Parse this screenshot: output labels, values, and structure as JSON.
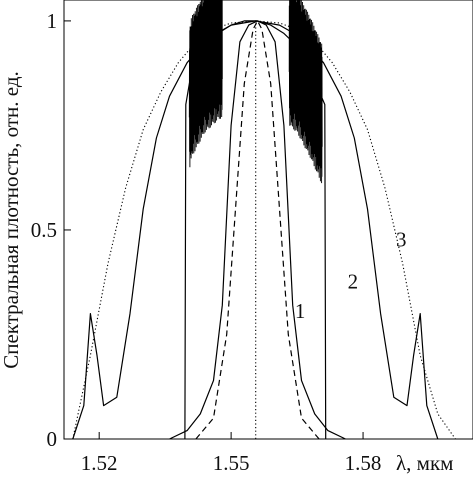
{
  "chart_data": {
    "type": "line",
    "title": "",
    "xlabel": "λ, мкм",
    "ylabel": "Спектральная плотность, отн. ед.",
    "xlim": [
      1.512,
      1.605
    ],
    "ylim": [
      0,
      1.05
    ],
    "x_ticks": [
      {
        "value": 1.52,
        "label": "1.52"
      },
      {
        "value": 1.55,
        "label": "1.55"
      },
      {
        "value": 1.58,
        "label": "1.58"
      }
    ],
    "y_ticks": [
      {
        "value": 0,
        "label": "0"
      },
      {
        "value": 0.5,
        "label": "0.5"
      },
      {
        "value": 1,
        "label": "1"
      }
    ],
    "grid": false,
    "legend": "none",
    "series": [
      {
        "name": "1",
        "style": "solid",
        "x": [
          1.536,
          1.54,
          1.543,
          1.546,
          1.548,
          1.55,
          1.552,
          1.554,
          1.556,
          1.558,
          1.56,
          1.562,
          1.564,
          1.566,
          1.569,
          1.572,
          1.576
        ],
        "y": [
          0.0,
          0.02,
          0.06,
          0.14,
          0.32,
          0.75,
          0.95,
          0.99,
          1.0,
          0.99,
          0.95,
          0.75,
          0.32,
          0.14,
          0.06,
          0.02,
          0.0
        ]
      },
      {
        "name": "",
        "style": "dashed",
        "x": [
          1.542,
          1.546,
          1.549,
          1.551,
          1.553,
          1.555,
          1.556,
          1.557,
          1.559,
          1.561,
          1.563,
          1.566,
          1.57
        ],
        "y": [
          0.0,
          0.05,
          0.25,
          0.55,
          0.85,
          0.98,
          1.0,
          0.98,
          0.85,
          0.55,
          0.25,
          0.05,
          0.0
        ]
      },
      {
        "name": "",
        "style": "dotted",
        "x": [
          1.5556,
          1.5556
        ],
        "y": [
          0.0,
          1.0
        ]
      },
      {
        "name": "2",
        "style": "solid",
        "x": [
          1.5395,
          1.5397,
          1.541,
          1.544,
          1.547,
          1.55,
          1.553,
          1.556,
          1.559,
          1.562,
          1.565,
          1.568,
          1.5713,
          1.5715
        ],
        "y": [
          0.0,
          0.8,
          0.88,
          0.94,
          0.97,
          0.99,
          1.0,
          1.0,
          0.99,
          0.97,
          0.94,
          0.88,
          0.8,
          0.0
        ]
      },
      {
        "name": "3",
        "style": "solid",
        "x": [
          1.514,
          1.5165,
          1.518,
          1.5195,
          1.521,
          1.524,
          1.527,
          1.53,
          1.533,
          1.536,
          1.54,
          1.545,
          1.55,
          1.5556,
          1.561,
          1.566,
          1.571,
          1.575,
          1.578,
          1.581,
          1.584,
          1.587,
          1.59,
          1.5915,
          1.593,
          1.5945,
          1.597
        ],
        "y": [
          0.0,
          0.08,
          0.3,
          0.2,
          0.08,
          0.1,
          0.3,
          0.55,
          0.72,
          0.82,
          0.9,
          0.96,
          0.99,
          1.0,
          0.99,
          0.96,
          0.9,
          0.82,
          0.72,
          0.55,
          0.3,
          0.1,
          0.08,
          0.2,
          0.3,
          0.08,
          0.0
        ]
      },
      {
        "name": "",
        "style": "dotted",
        "x": [
          1.514,
          1.518,
          1.522,
          1.526,
          1.53,
          1.534,
          1.538,
          1.542,
          1.546,
          1.55,
          1.5556,
          1.561,
          1.565,
          1.569,
          1.573,
          1.577,
          1.581,
          1.585,
          1.589,
          1.593,
          1.597,
          1.601
        ],
        "y": [
          0.0,
          0.2,
          0.42,
          0.6,
          0.74,
          0.83,
          0.9,
          0.95,
          0.98,
          0.995,
          1.0,
          0.995,
          0.98,
          0.95,
          0.9,
          0.83,
          0.74,
          0.6,
          0.42,
          0.2,
          0.06,
          0.0
        ]
      }
    ]
  }
}
